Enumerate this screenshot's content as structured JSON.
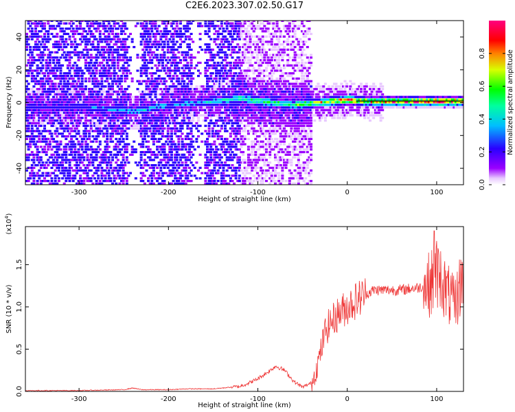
{
  "title": "C2E6.2023.307.02.50.G17",
  "chart_data": [
    {
      "type": "heatmap",
      "xlabel": "Height of straight line (km)",
      "ylabel": "Frequency (Hz)",
      "xlim": [
        -360,
        130
      ],
      "ylim": [
        -50,
        50
      ],
      "xticks": [
        -300,
        -200,
        -100,
        0,
        100
      ],
      "yticks": [
        -40,
        -20,
        0,
        20,
        40
      ],
      "colorbar": {
        "label": "Normalized spectral amplitude",
        "range": [
          0,
          1
        ],
        "ticks": [
          0.0,
          0.2,
          0.4,
          0.6,
          0.8
        ],
        "tick_labels": [
          "0.0",
          "0.2",
          "0.4",
          "0.6",
          "0.8"
        ],
        "colormap": [
          "#ffffff",
          "#9b00ff",
          "#0000ff",
          "#00ffff",
          "#00ff00",
          "#ffff00",
          "#ff0000",
          "#ff0080"
        ]
      },
      "ridge": {
        "description_points_x": [
          -360,
          -300,
          -240,
          -200,
          -150,
          -120,
          -100,
          -80,
          -60,
          -40,
          -20,
          0,
          20,
          60,
          100,
          130
        ],
        "center_freq": [
          -4,
          -3,
          -6,
          -2,
          0,
          2,
          0,
          -1,
          -2,
          -1,
          0,
          1,
          0,
          0,
          0,
          0
        ],
        "peak_amplitude": [
          0.15,
          0.2,
          0.35,
          0.3,
          0.35,
          0.45,
          0.55,
          0.5,
          0.55,
          0.65,
          0.75,
          0.85,
          0.75,
          0.9,
          0.95,
          0.9
        ]
      }
    },
    {
      "type": "line",
      "xlabel": "Height of straight line (km)",
      "ylabel": "SNR (10 * v/v)",
      "yscale_label": "(x10^4)",
      "xlim": [
        -360,
        130
      ],
      "ylim": [
        0,
        1.95
      ],
      "xticks": [
        -300,
        -200,
        -100,
        0,
        100
      ],
      "yticks": [
        0.0,
        0.5,
        1.0,
        1.5
      ],
      "ytick_labels": [
        "0.0",
        "0.5",
        "1.0",
        "1.5"
      ],
      "series": [
        {
          "color": "#ee3333",
          "x": [
            -360,
            -300,
            -250,
            -240,
            -230,
            -200,
            -180,
            -150,
            -120,
            -110,
            -100,
            -90,
            -80,
            -70,
            -60,
            -50,
            -40,
            -35,
            -30,
            -25,
            -20,
            -10,
            0,
            10,
            20,
            30,
            40,
            60,
            80,
            90,
            95,
            100,
            105,
            110,
            115,
            120,
            125,
            130
          ],
          "values": [
            0.01,
            0.01,
            0.02,
            0.04,
            0.02,
            0.02,
            0.03,
            0.03,
            0.06,
            0.1,
            0.15,
            0.22,
            0.3,
            0.25,
            0.12,
            0.05,
            0.1,
            0.25,
            0.45,
            0.7,
            0.8,
            0.92,
            1.0,
            1.08,
            1.15,
            1.2,
            1.2,
            1.2,
            1.23,
            1.25,
            1.3,
            1.4,
            1.35,
            1.2,
            1.1,
            1.0,
            1.2,
            1.4
          ]
        }
      ]
    }
  ]
}
